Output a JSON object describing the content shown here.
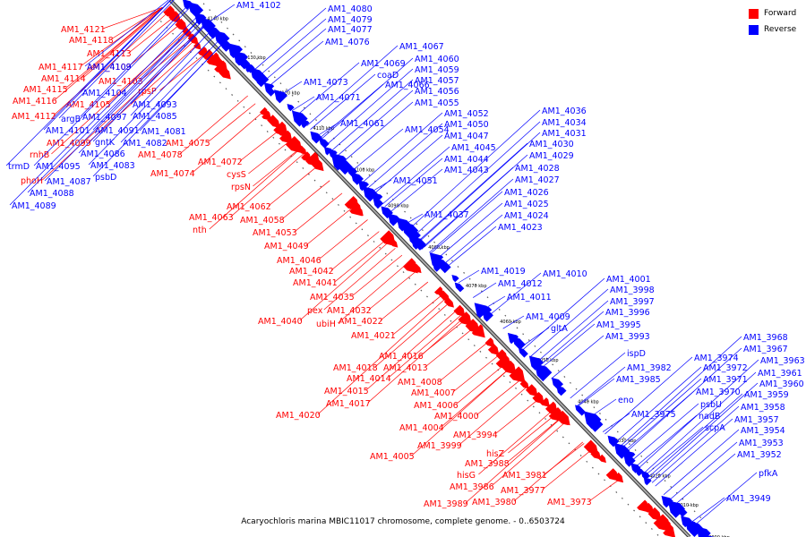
{
  "caption": "Acaryochloris marina MBIC11017 chromosome, complete genome. - 0..6503724",
  "legend": [
    {
      "label": "Forward",
      "color": "#ff0000"
    },
    {
      "label": "Reverse",
      "color": "#0000ff"
    }
  ],
  "colors": {
    "forward": "#ff0000",
    "reverse": "#0000ff",
    "axis": "#888888"
  },
  "ticks": [
    "4140 kbp",
    "4130 kbp",
    "4120 kbp",
    "4110 kbp",
    "4100 kbp",
    "4090 kbp",
    "4080 kbp",
    "4070 kbp",
    "4060 kbp",
    "4050 kbp",
    "4040 kbp",
    "4030 kbp",
    "4020 kbp",
    "4010 kbp",
    "4000 kbp"
  ],
  "forward_labels": [
    "AM1_4121",
    "AM1_4118",
    "AM1_4113",
    "AM1_4117",
    "AM1_4109",
    "AM1_4114",
    "AM1_4103",
    "AM1_4115",
    "rpsP",
    "AM1_4116",
    "AM1_4105",
    "AM1_4112",
    "AM1_4099",
    "AM1_4075",
    "rnhB",
    "AM1_4078",
    "AM1_4072",
    "cysS",
    "phoH",
    "AM1_4074",
    "rpsN",
    "AM1_4062",
    "AM1_4063",
    "AM1_4058",
    "nth",
    "AM1_4053",
    "AM1_4049",
    "AM1_4046",
    "AM1_4042",
    "AM1_4041",
    "AM1_4035",
    "pex",
    "AM1_4032",
    "AM1_4040",
    "ubiH",
    "AM1_4022",
    "AM1_4021",
    "AM1_4016",
    "AM1_4018",
    "AM1_4013",
    "AM1_4014",
    "AM1_4008",
    "AM1_4015",
    "AM1_4007",
    "AM1_4017",
    "AM1_4006",
    "AM1_4020",
    "AM1_4000",
    "AM1_4004",
    "AM1_3994",
    "AM1_3999",
    "AM1_4005",
    "hisZ",
    "AM1_3988",
    "AM1_3981",
    "hisG",
    "AM1_3986",
    "AM1_3977",
    "AM1_3980",
    "AM1_3989",
    "AM1_3973"
  ],
  "reverse_labels": [
    "AM1_4102",
    "AM1_4080",
    "AM1_4079",
    "AM1_4077",
    "AM1_4076",
    "AM1_4067",
    "AM1_4069",
    "AM1_4060",
    "coaD",
    "AM1_4059",
    "AM1_4073",
    "AM1_4066",
    "AM1_4057",
    "AM1_4071",
    "AM1_4056",
    "AM1_4055",
    "AM1_4052",
    "AM1_4061",
    "AM1_4050",
    "AM1_4054",
    "AM1_4047",
    "AM1_4045",
    "AM1_4044",
    "AM1_4043",
    "AM1_4051",
    "AM1_4037",
    "AM1_4036",
    "AM1_4034",
    "AM1_4031",
    "AM1_4030",
    "AM1_4029",
    "AM1_4028",
    "AM1_4027",
    "AM1_4026",
    "AM1_4025",
    "AM1_4024",
    "AM1_4023",
    "AM1_4019",
    "AM1_4010",
    "AM1_4012",
    "AM1_4011",
    "AM1_4009",
    "gltA",
    "AM1_4001",
    "AM1_3998",
    "AM1_3997",
    "AM1_3996",
    "AM1_3995",
    "AM1_3993",
    "ispD",
    "AM1_3982",
    "AM1_3985",
    "eno",
    "AM1_3975",
    "AM1_3974",
    "AM1_3972",
    "AM1_3971",
    "AM1_3970",
    "psbU",
    "nadB",
    "scpA",
    "AM1_3968",
    "AM1_3967",
    "AM1_3963",
    "AM1_3961",
    "AM1_3960",
    "AM1_3959",
    "AM1_3958",
    "AM1_3957",
    "AM1_3954",
    "AM1_3953",
    "AM1_3952",
    "pfkA",
    "AM1_3949",
    "AM1_4109",
    "AM1_4104",
    "AM1_4093",
    "argB",
    "AM1_4097",
    "AM1_4085",
    "AM1_4101",
    "AM1_4091",
    "AM1_4081",
    "gntK",
    "AM1_4082",
    "trmD",
    "AM1_4095",
    "AM1_4086",
    "AM1_4083",
    "AM1_4087",
    "psbD",
    "AM1_4088",
    "AM1_4089"
  ]
}
